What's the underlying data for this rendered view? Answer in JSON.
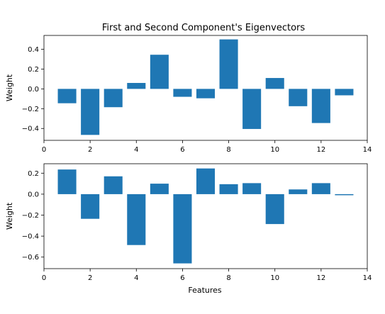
{
  "chart_data": [
    {
      "type": "bar",
      "title": "First and Second Component's Eigenvectors",
      "xlabel": "",
      "ylabel": "Weight",
      "x": [
        1,
        2,
        3,
        4,
        5,
        6,
        7,
        8,
        9,
        10,
        11,
        12,
        13
      ],
      "values": [
        -0.145,
        -0.465,
        -0.185,
        0.06,
        0.345,
        -0.08,
        -0.095,
        0.5,
        -0.405,
        0.11,
        -0.175,
        -0.345,
        -0.065
      ],
      "xlim": [
        0,
        14
      ],
      "ylim": [
        -0.52,
        0.54
      ],
      "xticks": [
        0,
        2,
        4,
        6,
        8,
        10,
        12,
        14
      ],
      "xtick_labels": [
        "0",
        "2",
        "4",
        "6",
        "8",
        "10",
        "12",
        "14"
      ],
      "yticks": [
        -0.4,
        -0.2,
        0.0,
        0.2,
        0.4
      ],
      "ytick_labels": [
        "−0.4",
        "−0.2",
        "0.0",
        "0.2",
        "0.4"
      ],
      "bar_color": "#1f77b4",
      "grid": false
    },
    {
      "type": "bar",
      "title": "",
      "xlabel": "Features",
      "ylabel": "Weight",
      "x": [
        1,
        2,
        3,
        4,
        5,
        6,
        7,
        8,
        9,
        10,
        11,
        12,
        13
      ],
      "values": [
        0.235,
        -0.235,
        0.17,
        -0.485,
        0.1,
        -0.66,
        0.245,
        0.095,
        0.105,
        -0.285,
        0.045,
        0.105,
        -0.01
      ],
      "xlim": [
        0,
        14
      ],
      "ylim": [
        -0.71,
        0.29
      ],
      "xticks": [
        0,
        2,
        4,
        6,
        8,
        10,
        12,
        14
      ],
      "xtick_labels": [
        "0",
        "2",
        "4",
        "6",
        "8",
        "10",
        "12",
        "14"
      ],
      "yticks": [
        -0.6,
        -0.4,
        -0.2,
        0.0,
        0.2
      ],
      "ytick_labels": [
        "−0.6",
        "−0.4",
        "−0.2",
        "0.0",
        "0.2"
      ],
      "bar_color": "#1f77b4",
      "grid": false
    }
  ]
}
